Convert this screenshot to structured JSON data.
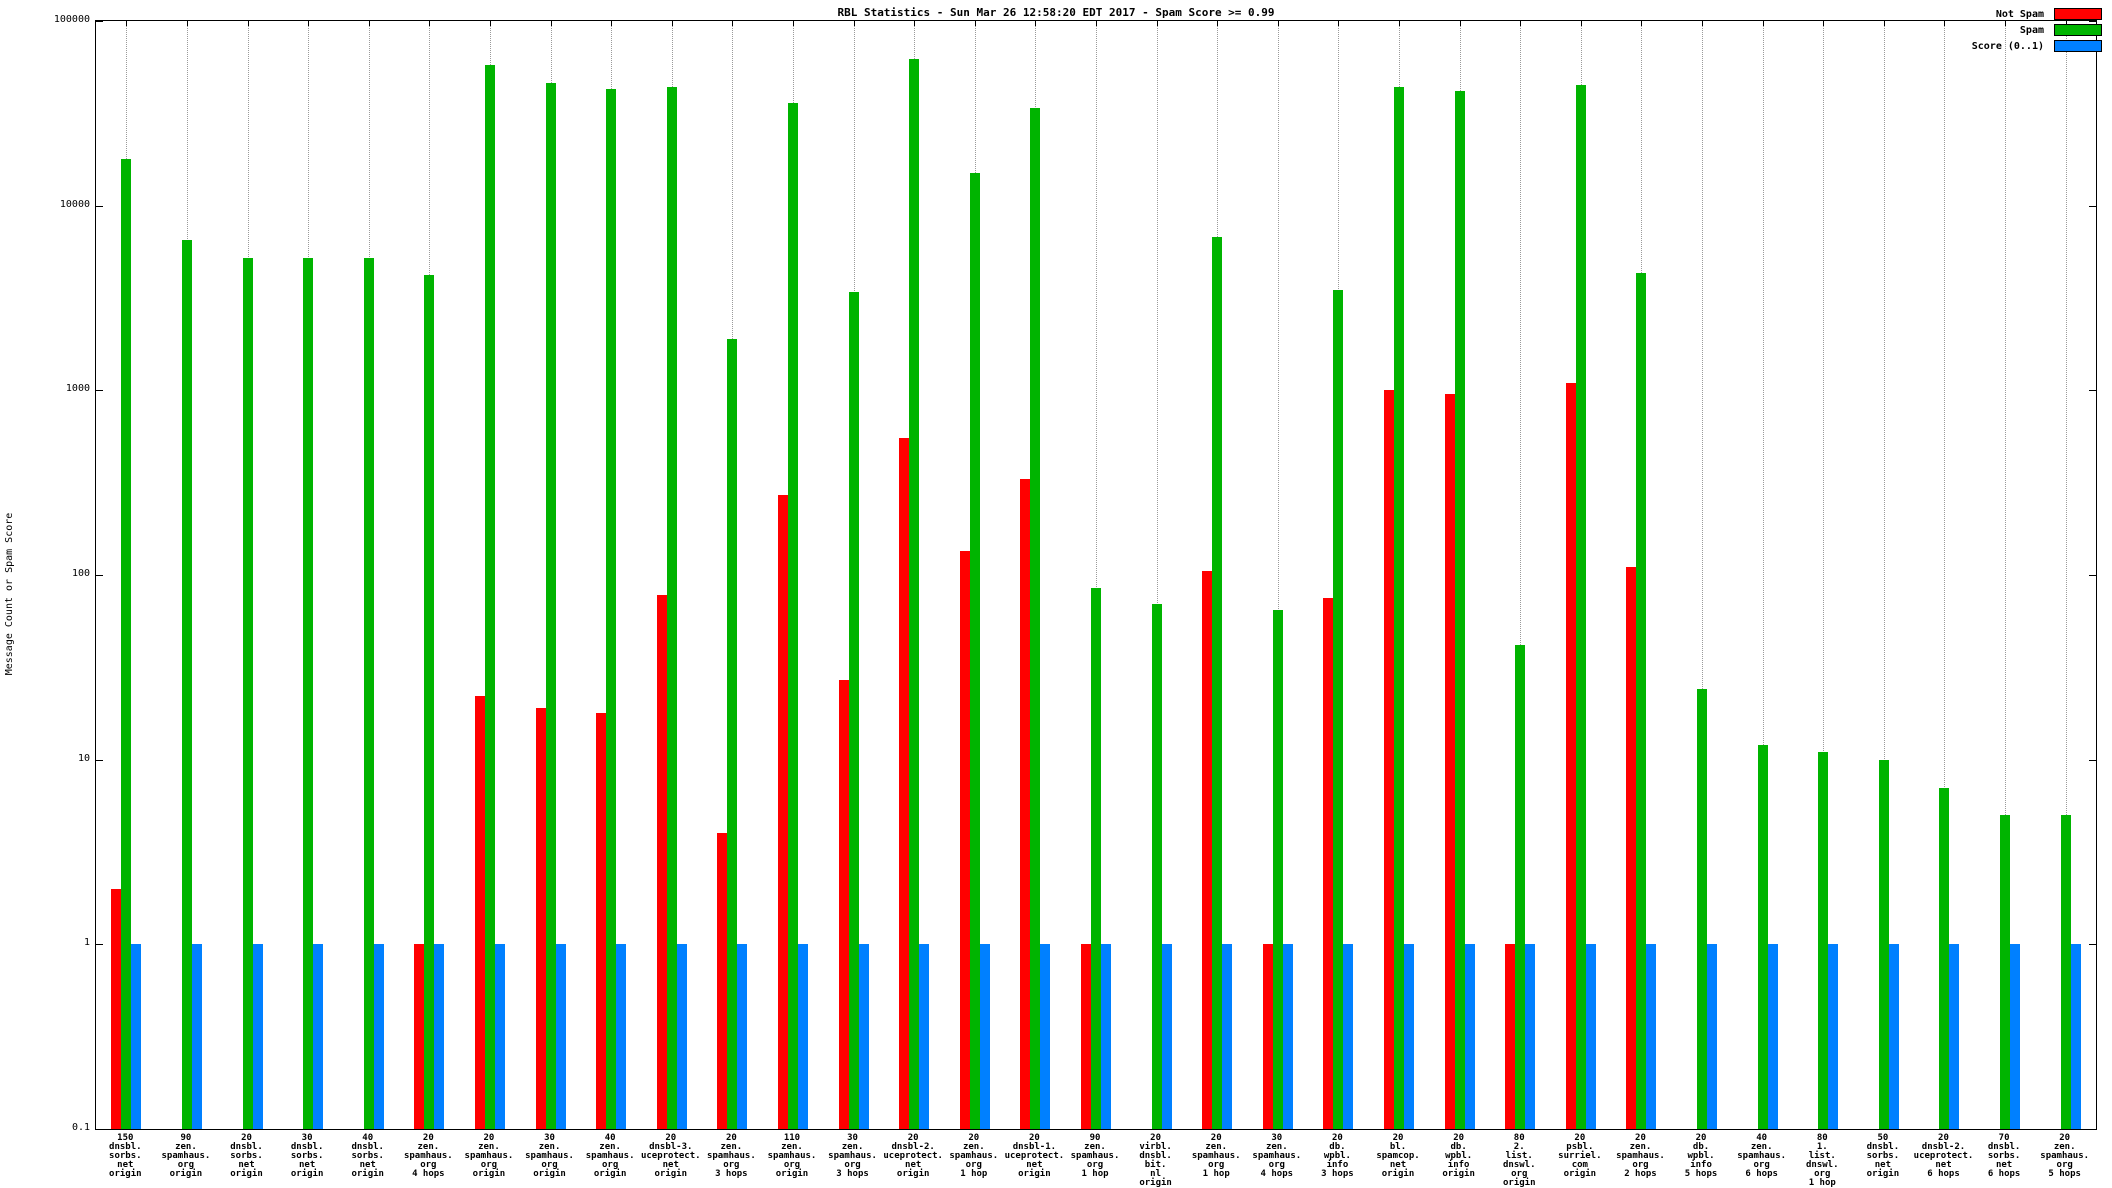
{
  "title": "RBL Statistics - Sun Mar 26 12:58:20 EDT 2017 - Spam Score >= 0.99",
  "ylabel": "Message Count or Spam Score",
  "legend": [
    {
      "label": "Not Spam",
      "color": "#ff0000"
    },
    {
      "label": "Spam",
      "color": "#00b400"
    },
    {
      "label": "Score (0..1)",
      "color": "#0080ff"
    }
  ],
  "chart_data": {
    "type": "bar",
    "scale": "log",
    "ylim": [
      0.1,
      100000
    ],
    "grid": "vertical-dotted",
    "legend_position": "top-right",
    "yticks": [
      {
        "value": 100000,
        "label": "100000"
      },
      {
        "value": 10000,
        "label": "10000"
      },
      {
        "value": 1000,
        "label": "1000"
      },
      {
        "value": 100,
        "label": "100"
      },
      {
        "value": 10,
        "label": "10"
      },
      {
        "value": 1,
        "label": "1"
      },
      {
        "value": 0.1,
        "label": "0.1"
      }
    ],
    "categories": [
      {
        "lines": [
          "150",
          "dnsbl.",
          "sorbs.",
          "net",
          "origin"
        ]
      },
      {
        "lines": [
          "90",
          "zen.",
          "spamhaus.",
          "org",
          "origin"
        ]
      },
      {
        "lines": [
          "20",
          "dnsbl.",
          "sorbs.",
          "net",
          "origin"
        ]
      },
      {
        "lines": [
          "30",
          "dnsbl.",
          "sorbs.",
          "net",
          "origin"
        ]
      },
      {
        "lines": [
          "40",
          "dnsbl.",
          "sorbs.",
          "net",
          "origin"
        ]
      },
      {
        "lines": [
          "20",
          "zen.",
          "spamhaus.",
          "org",
          "4 hops"
        ]
      },
      {
        "lines": [
          "20",
          "zen.",
          "spamhaus.",
          "org",
          "origin"
        ]
      },
      {
        "lines": [
          "30",
          "zen.",
          "spamhaus.",
          "org",
          "origin"
        ]
      },
      {
        "lines": [
          "40",
          "zen.",
          "spamhaus.",
          "org",
          "origin"
        ]
      },
      {
        "lines": [
          "20",
          "dnsbl-3.",
          "uceprotect.",
          "net",
          "origin"
        ]
      },
      {
        "lines": [
          "20",
          "zen.",
          "spamhaus.",
          "org",
          "3 hops"
        ]
      },
      {
        "lines": [
          "110",
          "zen.",
          "spamhaus.",
          "org",
          "origin"
        ]
      },
      {
        "lines": [
          "30",
          "zen.",
          "spamhaus.",
          "org",
          "3 hops"
        ]
      },
      {
        "lines": [
          "20",
          "dnsbl-2.",
          "uceprotect.",
          "net",
          "origin"
        ]
      },
      {
        "lines": [
          "20",
          "zen.",
          "spamhaus.",
          "org",
          "1 hop"
        ]
      },
      {
        "lines": [
          "20",
          "dnsbl-1.",
          "uceprotect.",
          "net",
          "origin"
        ]
      },
      {
        "lines": [
          "90",
          "zen.",
          "spamhaus.",
          "org",
          "1 hop"
        ]
      },
      {
        "lines": [
          "20",
          "virbl.",
          "dnsbl.",
          "bit.",
          "nl",
          "origin"
        ]
      },
      {
        "lines": [
          "20",
          "zen.",
          "spamhaus.",
          "org",
          "1 hop"
        ]
      },
      {
        "lines": [
          "30",
          "zen.",
          "spamhaus.",
          "org",
          "4 hops"
        ]
      },
      {
        "lines": [
          "20",
          "db.",
          "wpbl.",
          "info",
          "3 hops"
        ]
      },
      {
        "lines": [
          "20",
          "bl.",
          "spamcop.",
          "net",
          "origin"
        ]
      },
      {
        "lines": [
          "20",
          "db.",
          "wpbl.",
          "info",
          "origin"
        ]
      },
      {
        "lines": [
          "80",
          "2.",
          "list.",
          "dnswl.",
          "org",
          "origin"
        ]
      },
      {
        "lines": [
          "20",
          "psbl.",
          "surriel.",
          "com",
          "origin"
        ]
      },
      {
        "lines": [
          "20",
          "zen.",
          "spamhaus.",
          "org",
          "2 hops"
        ]
      },
      {
        "lines": [
          "20",
          "db.",
          "wpbl.",
          "info",
          "5 hops"
        ]
      },
      {
        "lines": [
          "40",
          "zen.",
          "spamhaus.",
          "org",
          "6 hops"
        ]
      },
      {
        "lines": [
          "80",
          "1.",
          "list.",
          "dnswl.",
          "org",
          "1 hop"
        ]
      },
      {
        "lines": [
          "50",
          "dnsbl.",
          "sorbs.",
          "net",
          "origin"
        ]
      },
      {
        "lines": [
          "20",
          "dnsbl-2.",
          "uceprotect.",
          "net",
          "6 hops"
        ]
      },
      {
        "lines": [
          "70",
          "dnsbl.",
          "sorbs.",
          "net",
          "6 hops"
        ]
      },
      {
        "lines": [
          "20",
          "zen.",
          "spamhaus.",
          "org",
          "5 hops"
        ]
      }
    ],
    "series": [
      {
        "name": "Not Spam",
        "color": "#ff0000",
        "values": [
          2,
          0,
          0,
          0,
          0,
          1,
          22,
          19,
          18,
          78,
          4,
          270,
          27,
          550,
          135,
          330,
          1,
          0,
          105,
          1,
          75,
          1000,
          950,
          1,
          1100,
          110,
          0,
          0,
          0,
          0,
          0,
          0,
          0
        ]
      },
      {
        "name": "Spam",
        "color": "#00b400",
        "values": [
          18000,
          6500,
          5200,
          5200,
          5200,
          4200,
          58000,
          46000,
          43000,
          44000,
          1900,
          36000,
          3400,
          62000,
          15000,
          34000,
          85,
          70,
          6800,
          65,
          3500,
          44000,
          42000,
          42,
          45000,
          4300,
          24,
          12,
          11,
          10,
          7,
          5,
          5
        ]
      },
      {
        "name": "Score (0..1)",
        "color": "#0080ff",
        "values": [
          1,
          1,
          1,
          1,
          1,
          1,
          1,
          1,
          1,
          1,
          1,
          1,
          1,
          1,
          1,
          1,
          1,
          1,
          1,
          1,
          1,
          1,
          1,
          1,
          1,
          1,
          1,
          1,
          1,
          1,
          1,
          1,
          1
        ]
      }
    ]
  }
}
